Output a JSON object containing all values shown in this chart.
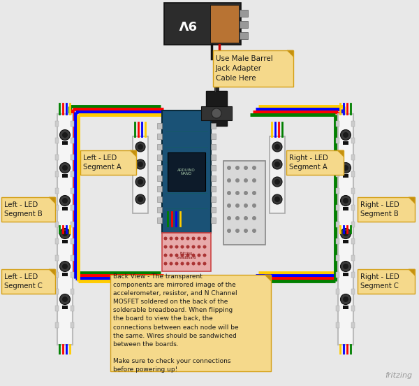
{
  "bg_color": "#e8e8e8",
  "annotation_bg": "#f5d98b",
  "annotation_border": "#d4a017",
  "annotation_fold": "#c49010",
  "barrel_jack_note": "Use Male Barrel\nJack Adapter\nCable Here",
  "back_view_note": "Back View - The transparent\ncomponents are mirrored image of the\naccelerometer, resistor, and N Channel\nMOSFET soldered on the back of the\nsolderable breadboard. When flipping\nthe board to view the back, the\nconnections between each node will be\nthe same. Wires should be sandwiched\nbetween the boards.\n\nMake sure to check your connections\nbefore powering up!",
  "labels": {
    "left_a": {
      "text": "Left - LED\nSegment A"
    },
    "left_b": {
      "text": "Left - LED\nSegment B"
    },
    "left_c": {
      "text": "Left - LED\nSegment C"
    },
    "right_a": {
      "text": "Right - LED\nSegment A"
    },
    "right_b": {
      "text": "Right - LED\nSegment B"
    },
    "right_c": {
      "text": "Right - LED\nSegment C"
    }
  },
  "wire_colors_left": [
    "#008000",
    "#ff0000",
    "#0000ff",
    "#ffcc00"
  ],
  "wire_colors_right": [
    "#ffcc00",
    "#0000ff",
    "#ff0000",
    "#008000"
  ],
  "border_colors": [
    "#008000",
    "#ff0000",
    "#0000ff",
    "#ffcc00"
  ],
  "fritzing_text": "fritzing"
}
